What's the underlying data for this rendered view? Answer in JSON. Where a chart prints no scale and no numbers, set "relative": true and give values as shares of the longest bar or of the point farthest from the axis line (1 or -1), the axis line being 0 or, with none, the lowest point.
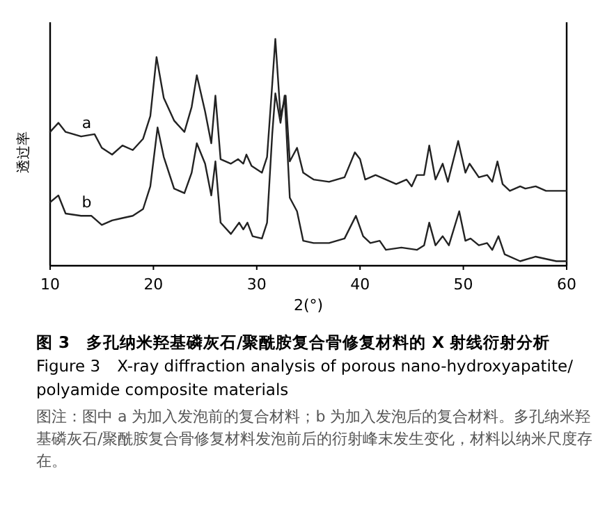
{
  "chart_data": {
    "type": "line",
    "relative": true,
    "title": "图 3　多孔纳米羟基磷灰石/聚酰胺复合骨修复材料的 X 射线衍射分析",
    "subtitle": "Figure 3　X-ray diffraction analysis of porous nano-hydroxyapatite/polyamide composite materials",
    "xlabel": "2(°)",
    "ylabel": "透过率",
    "xlim": [
      10,
      60
    ],
    "xticks": [
      10,
      20,
      30,
      40,
      50,
      60
    ],
    "grid": false,
    "marker": "none",
    "line_style": "solid",
    "annotations": [
      "a",
      "b",
      "图注：图中 a 为加入发泡前的复合材料；b 为加入发泡后的复合材料。多孔纳米羟基磷灰石/聚酰胺复合骨修复材料发泡前后的衍射峰末发生变化，材料以纳米尺度存在。"
    ],
    "series": [
      {
        "color": "#222222",
        "x": [
          10,
          10.8,
          11.5,
          13,
          14.3,
          15,
          16,
          17,
          18,
          19,
          19.7,
          20.3,
          21,
          22,
          23,
          23.7,
          24.2,
          25,
          25.6,
          26,
          26.5,
          27.5,
          28.2,
          28.7,
          29,
          29.5,
          30.5,
          31,
          31.5,
          31.8,
          32.3,
          32.8,
          33.2,
          33.9,
          34.5,
          35.5,
          37,
          38.5,
          39.5,
          40,
          40.5,
          41.5,
          42.5,
          43.5,
          44.5,
          45,
          45.5,
          46.2,
          46.7,
          47.3,
          48,
          48.5,
          49.5,
          50.2,
          50.6,
          51.5,
          52.3,
          52.8,
          53.3,
          53.8,
          54.5,
          55.5,
          56,
          57,
          58,
          59,
          60
        ],
        "values": [
          0.59,
          0.63,
          0.59,
          0.57,
          0.58,
          0.52,
          0.49,
          0.53,
          0.51,
          0.56,
          0.66,
          0.92,
          0.74,
          0.64,
          0.59,
          0.7,
          0.84,
          0.68,
          0.54,
          0.75,
          0.47,
          0.45,
          0.47,
          0.45,
          0.49,
          0.44,
          0.41,
          0.48,
          0.8,
          1.0,
          0.66,
          0.75,
          0.46,
          0.52,
          0.41,
          0.38,
          0.37,
          0.39,
          0.5,
          0.47,
          0.38,
          0.4,
          0.38,
          0.36,
          0.38,
          0.35,
          0.4,
          0.4,
          0.53,
          0.38,
          0.45,
          0.37,
          0.55,
          0.41,
          0.45,
          0.39,
          0.4,
          0.37,
          0.46,
          0.36,
          0.33,
          0.35,
          0.34,
          0.35,
          0.33,
          0.33,
          0.33
        ]
      },
      {
        "color": "#222222",
        "x": [
          10,
          10.8,
          11.5,
          13,
          14,
          15,
          16,
          17,
          18,
          19,
          19.7,
          20.4,
          21,
          22,
          23,
          23.7,
          24.2,
          25,
          25.6,
          26,
          26.5,
          27.5,
          28.3,
          28.7,
          29.1,
          29.6,
          30.5,
          31,
          31.5,
          31.8,
          32.3,
          32.7,
          33.2,
          33.9,
          34.5,
          35.5,
          37,
          38.5,
          39.6,
          40.3,
          41,
          41.9,
          42.5,
          44,
          45.5,
          46.2,
          46.7,
          47.3,
          48,
          48.6,
          49.6,
          50.2,
          50.7,
          51.5,
          52.3,
          52.8,
          53.4,
          54,
          55.5,
          57,
          58,
          59,
          60
        ],
        "values": [
          0.28,
          0.31,
          0.23,
          0.22,
          0.22,
          0.18,
          0.2,
          0.21,
          0.22,
          0.25,
          0.35,
          0.61,
          0.48,
          0.34,
          0.32,
          0.41,
          0.54,
          0.45,
          0.31,
          0.46,
          0.19,
          0.14,
          0.19,
          0.16,
          0.19,
          0.13,
          0.12,
          0.19,
          0.58,
          0.76,
          0.63,
          0.75,
          0.3,
          0.24,
          0.11,
          0.1,
          0.1,
          0.12,
          0.22,
          0.13,
          0.1,
          0.11,
          0.07,
          0.08,
          0.07,
          0.09,
          0.19,
          0.09,
          0.13,
          0.09,
          0.24,
          0.11,
          0.12,
          0.09,
          0.1,
          0.07,
          0.13,
          0.05,
          0.02,
          0.04,
          0.03,
          0.02,
          0.02
        ]
      }
    ]
  }
}
